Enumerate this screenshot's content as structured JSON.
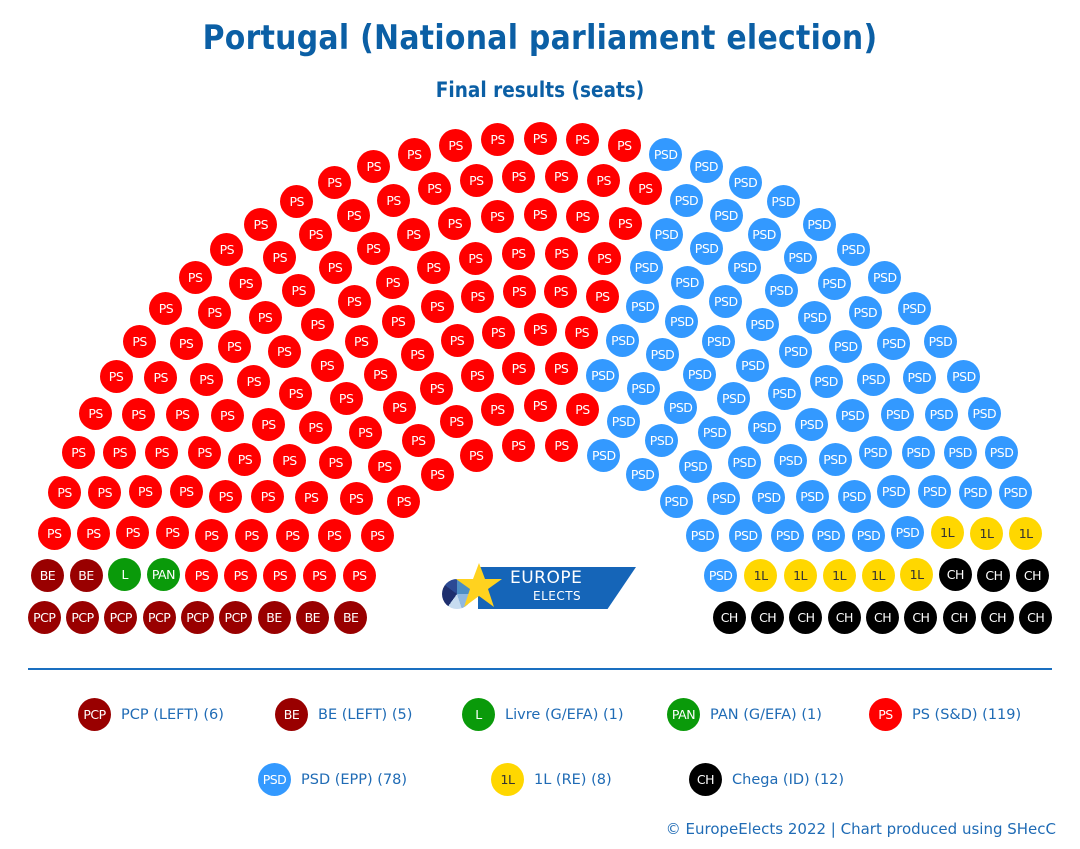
{
  "header": {
    "title": "Portugal (National parliament election)",
    "subtitle": "Final results (seats)"
  },
  "chart_data": {
    "type": "parliament-hemicycle",
    "title": "Portugal (National parliament election)",
    "subtitle": "Final results (seats)",
    "total_seats": 230,
    "rows": 9,
    "order": "left-to-right",
    "parties": [
      {
        "abbr": "PCP",
        "name": "PCP (LEFT)",
        "seats": 6,
        "color": "#990000",
        "text_color": "#ffffff"
      },
      {
        "abbr": "BE",
        "name": "BE (LEFT)",
        "seats": 5,
        "color": "#990000",
        "text_color": "#ffffff"
      },
      {
        "abbr": "L",
        "name": "Livre (G/EFA)",
        "seats": 1,
        "color": "#0a9a0a",
        "text_color": "#ffffff"
      },
      {
        "abbr": "PAN",
        "name": "PAN (G/EFA)",
        "seats": 1,
        "color": "#0a9a0a",
        "text_color": "#ffffff"
      },
      {
        "abbr": "PS",
        "name": "PS (S&D)",
        "seats": 119,
        "color": "#ff0000",
        "text_color": "#ffffff"
      },
      {
        "abbr": "PSD",
        "name": "PSD (EPP)",
        "seats": 78,
        "color": "#3399ff",
        "text_color": "#ffffff"
      },
      {
        "abbr": "1L",
        "name": "1L (RE)",
        "seats": 8,
        "color": "#ffd700",
        "text_color": "#333333"
      },
      {
        "abbr": "CH",
        "name": "Chega (ID)",
        "seats": 12,
        "color": "#000000",
        "text_color": "#ffffff"
      }
    ]
  },
  "legend": [
    {
      "abbr": "PCP",
      "label": "PCP (LEFT) (6)",
      "color": "#990000",
      "text_color": "#ffffff"
    },
    {
      "abbr": "BE",
      "label": "BE (LEFT) (5)",
      "color": "#990000",
      "text_color": "#ffffff"
    },
    {
      "abbr": "L",
      "label": "Livre (G/EFA) (1)",
      "color": "#0a9a0a",
      "text_color": "#ffffff"
    },
    {
      "abbr": "PAN",
      "label": "PAN (G/EFA) (1)",
      "color": "#0a9a0a",
      "text_color": "#ffffff"
    },
    {
      "abbr": "PS",
      "label": "PS (S&D) (119)",
      "color": "#ff0000",
      "text_color": "#ffffff"
    },
    {
      "abbr": "PSD",
      "label": "PSD (EPP) (78)",
      "color": "#3399ff",
      "text_color": "#ffffff"
    },
    {
      "abbr": "1L",
      "label": "1L (RE) (8)",
      "color": "#ffd700",
      "text_color": "#333333"
    },
    {
      "abbr": "CH",
      "label": "Chega (ID) (12)",
      "color": "#000000",
      "text_color": "#ffffff"
    }
  ],
  "logo": {
    "line1": "EUROPE",
    "line2": "ELECTS"
  },
  "footer": {
    "credit": "© EuropeElects 2022 | Chart produced using SHecC"
  }
}
